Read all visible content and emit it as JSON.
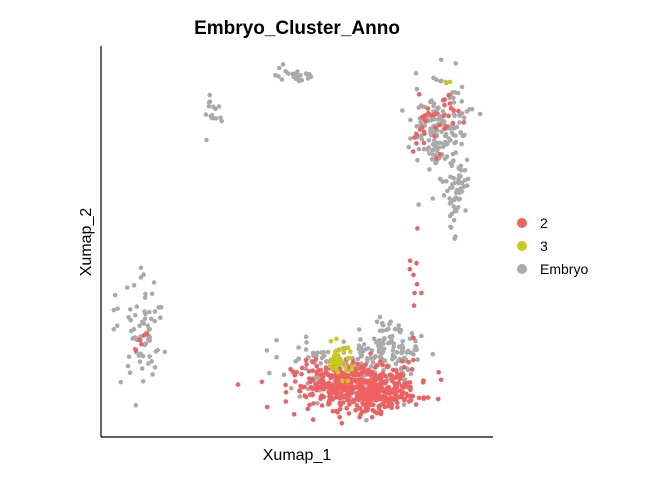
{
  "chart_data": {
    "type": "scatter",
    "title": "Embryo_Cluster_Anno",
    "xlabel": "Xumap_1",
    "ylabel": "Xumap_2",
    "xlim": [
      0,
      100
    ],
    "ylim": [
      0,
      100
    ],
    "grid": false,
    "legend_position": "right",
    "series": [
      {
        "name": "Embryo",
        "color": "#aaaaaa",
        "clusters": [
          {
            "cx": 49.5,
            "cy": 95.5,
            "sx": 2.6,
            "sy": 1.3,
            "n": 24
          },
          {
            "cx": 27.0,
            "cy": 84.5,
            "sx": 1.3,
            "sy": 2.6,
            "n": 16
          },
          {
            "cx": 8.5,
            "cy": 26.0,
            "sx": 3.0,
            "sy": 6.5,
            "n": 75
          },
          {
            "cx": 88.5,
            "cy": 80.0,
            "sx": 3.8,
            "sy": 7.5,
            "n": 170
          },
          {
            "cx": 93.0,
            "cy": 63.0,
            "sx": 1.5,
            "sy": 4.5,
            "n": 45
          },
          {
            "cx": 62.0,
            "cy": 14.0,
            "sx": 8.0,
            "sy": 4.5,
            "n": 140
          },
          {
            "cx": 75.0,
            "cy": 21.0,
            "sx": 4.5,
            "sy": 4.0,
            "n": 110
          }
        ]
      },
      {
        "name": "2",
        "color": "#f06060",
        "clusters": [
          {
            "cx": 66.0,
            "cy": 10.5,
            "sx": 8.5,
            "sy": 3.2,
            "n": 430
          },
          {
            "cx": 72.0,
            "cy": 8.0,
            "sx": 4.0,
            "sy": 2.0,
            "n": 90
          },
          {
            "cx": 85.0,
            "cy": 80.0,
            "sx": 1.8,
            "sy": 4.5,
            "n": 24
          },
          {
            "cx": 91.0,
            "cy": 85.0,
            "sx": 1.5,
            "sy": 3.5,
            "n": 14
          },
          {
            "cx": 81.5,
            "cy": 38.0,
            "sx": 0.9,
            "sy": 6.0,
            "n": 10
          },
          {
            "cx": 8.0,
            "cy": 23.0,
            "sx": 1.3,
            "sy": 1.8,
            "n": 5
          }
        ]
      },
      {
        "name": "3",
        "color": "#c9c91a",
        "clusters": [
          {
            "cx": 61.5,
            "cy": 17.5,
            "sx": 2.0,
            "sy": 2.2,
            "n": 38
          },
          {
            "cx": 91.2,
            "cy": 93.5,
            "sx": 0.4,
            "sy": 0.4,
            "n": 2
          }
        ]
      }
    ]
  },
  "legend": {
    "items": [
      {
        "label": "2",
        "color": "#f06060"
      },
      {
        "label": "3",
        "color": "#c9c91a"
      },
      {
        "label": "Embryo",
        "color": "#aaaaaa"
      }
    ]
  }
}
